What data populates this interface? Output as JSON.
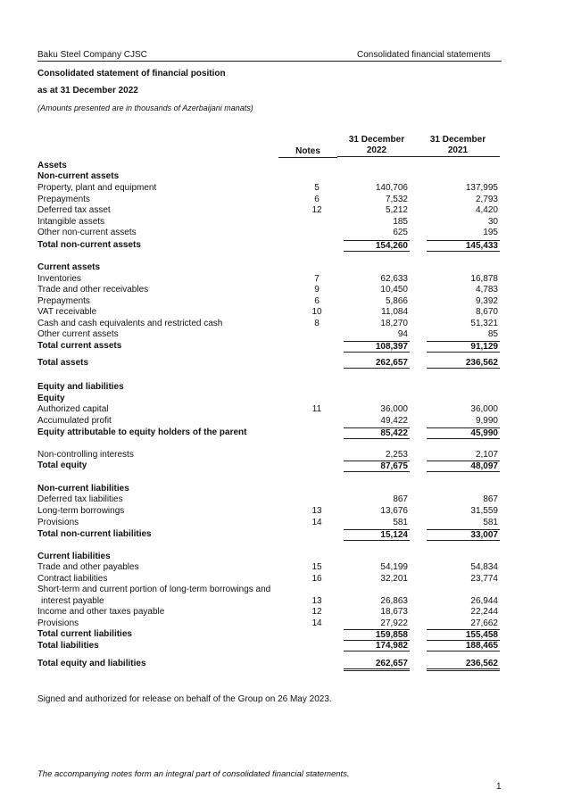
{
  "header": {
    "company": "Baku Steel Company CJSC",
    "doc_type": "Consolidated financial statements",
    "title": "Consolidated statement of financial position",
    "date": "as at 31 December 2022",
    "note": "(Amounts presented are in thousands of Azerbaijani manats)"
  },
  "columns": {
    "notes": "Notes",
    "y2022_line1": "31 December",
    "y2022_line2": "2022",
    "y2021_line1": "31 December",
    "y2021_line2": "2021"
  },
  "rows": [
    {
      "label": "Assets",
      "kind": "heading"
    },
    {
      "label": "Non-current assets",
      "kind": "heading"
    },
    {
      "label": "Property, plant and equipment",
      "note": "5",
      "v2022": "140,706",
      "v2021": "137,995"
    },
    {
      "label": "Prepayments",
      "note": "6",
      "v2022": "7,532",
      "v2021": "2,793"
    },
    {
      "label": "Deferred tax asset",
      "note": "12",
      "v2022": "5,212",
      "v2021": "4,420"
    },
    {
      "label": "Intangible assets",
      "note": "",
      "v2022": "185",
      "v2021": "30"
    },
    {
      "label": "Other non-current assets",
      "note": "",
      "v2022": "625",
      "v2021": "195"
    },
    {
      "label": "Total non-current assets",
      "kind": "total",
      "v2022": "154,260",
      "v2021": "145,433"
    },
    {
      "label": "Current assets",
      "kind": "heading"
    },
    {
      "label": "Inventories",
      "note": "7",
      "v2022": "62,633",
      "v2021": "16,878"
    },
    {
      "label": "Trade and other receivables",
      "note": "9",
      "v2022": "10,450",
      "v2021": "4,783"
    },
    {
      "label": "Prepayments",
      "note": "6",
      "v2022": "5,866",
      "v2021": "9,392"
    },
    {
      "label": "VAT receivable",
      "note": "10",
      "v2022": "11,084",
      "v2021": "8,670"
    },
    {
      "label": "Cash and cash equivalents and restricted cash",
      "note": "8",
      "v2022": "18,270",
      "v2021": "51,321"
    },
    {
      "label": "Other current assets",
      "note": "",
      "v2022": "94",
      "v2021": "85"
    },
    {
      "label": "Total current assets",
      "kind": "total",
      "v2022": "108,397",
      "v2021": "91,129"
    },
    {
      "label": "Total assets",
      "kind": "total",
      "v2022": "262,657",
      "v2021": "236,562"
    },
    {
      "label": "Equity and liabilities",
      "kind": "heading"
    },
    {
      "label": "Equity",
      "kind": "heading"
    },
    {
      "label": "Authorized capital",
      "note": "11",
      "v2022": "36,000",
      "v2021": "36,000"
    },
    {
      "label": "Accumulated profit",
      "note": "",
      "v2022": "49,422",
      "v2021": "9,990"
    },
    {
      "label": "Equity attributable to equity holders of the parent",
      "kind": "total",
      "v2022": "85,422",
      "v2021": "45,990"
    },
    {
      "label": "Non-controlling interests",
      "note": "",
      "v2022": "2,253",
      "v2021": "2,107"
    },
    {
      "label": "Total equity",
      "kind": "total",
      "v2022": "87,675",
      "v2021": "48,097"
    },
    {
      "label": "Non-current liabilities",
      "kind": "heading"
    },
    {
      "label": "Deferred tax liabilities",
      "note": "",
      "v2022": "867",
      "v2021": "867"
    },
    {
      "label": "Long-term borrowings",
      "note": "13",
      "v2022": "13,676",
      "v2021": "31,559"
    },
    {
      "label": "Provisions",
      "note": "14",
      "v2022": "581",
      "v2021": "581"
    },
    {
      "label": "Total non-current liabilities",
      "kind": "total",
      "v2022": "15,124",
      "v2021": "33,007"
    },
    {
      "label": "Current liabilities",
      "kind": "heading"
    },
    {
      "label": "Trade and other payables",
      "note": "15",
      "v2022": "54,199",
      "v2021": "54,834"
    },
    {
      "label": "Contract liabilities",
      "note": "16",
      "v2022": "32,201",
      "v2021": "23,774"
    },
    {
      "label": "Short-term and current portion of long-term borrowings and",
      "note": "",
      "v2022": "",
      "v2021": ""
    },
    {
      "label": " interest payable",
      "note": "13",
      "v2022": "26,863",
      "v2021": "26,944"
    },
    {
      "label": "Income and other taxes payable",
      "note": "12",
      "v2022": "18,673",
      "v2021": "22,244"
    },
    {
      "label": "Provisions",
      "note": "14",
      "v2022": "27,922",
      "v2021": "27,662"
    },
    {
      "label": "Total current liabilities",
      "kind": "total",
      "v2022": "159,858",
      "v2021": "155,458"
    },
    {
      "label": "Total liabilities",
      "kind": "total",
      "v2022": "174,982",
      "v2021": "188,465"
    },
    {
      "label": "Total equity and liabilities",
      "kind": "total",
      "v2022": "262,657",
      "v2021": "236,562"
    }
  ],
  "footer": {
    "signed": "Signed and authorized for release on behalf of the Group on 26 May 2023.",
    "notes_text": "The accompanying notes form an integral part of consolidated financial statements.",
    "page_number": "1"
  }
}
